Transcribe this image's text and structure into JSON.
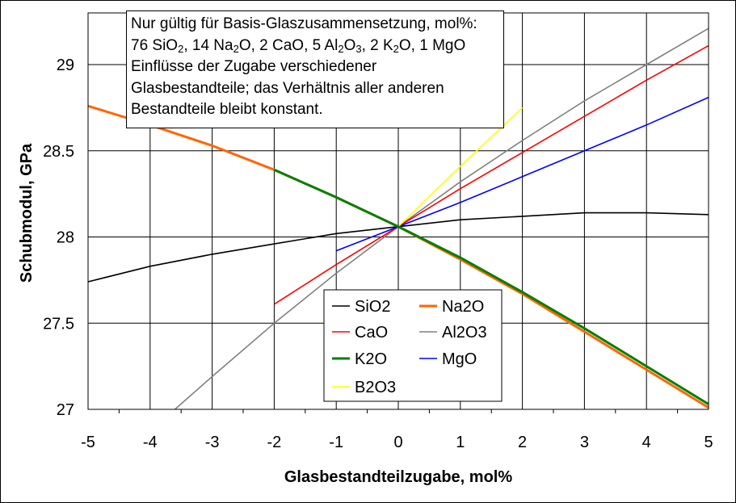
{
  "chart_data": {
    "type": "line",
    "xlabel": "Glasbestandteilzugabe, mol%",
    "ylabel": "Schubmodul, GPa",
    "xlim": [
      -5,
      5
    ],
    "ylim": [
      27,
      29.3
    ],
    "x_ticks": [
      "-5",
      "-4",
      "-3",
      "-2",
      "-1",
      "0",
      "1",
      "2",
      "3",
      "4",
      "5"
    ],
    "y_ticks": [
      "27",
      "27.5",
      "28",
      "28.5",
      "29"
    ],
    "grid": true,
    "legend_position": "bottom-center",
    "annotation_lines": [
      "Nur gültig für Basis-Glaszusammensetzung, mol%:",
      "76 SiO2, 14 Na2O, 2 CaO, 5 Al2O3, 2 K2O, 1 MgO",
      "Einflüsse der Zugabe verschiedener",
      "Glasbestandteile; das Verhältnis aller anderen",
      "Bestandteile bleibt konstant."
    ],
    "note_parts": {
      "a1": "76 SiO",
      "a2": ", 14 Na",
      "a3": "O, 2 CaO, 5 Al",
      "a4": "O",
      "a5": ", 2 K",
      "a6": "O, 1 MgO",
      "sub2": "2",
      "sub3": "3"
    },
    "series": [
      {
        "name": "SiO2",
        "color": "#000000",
        "x": [
          -5,
          -4,
          -3,
          -2,
          -1,
          0,
          1,
          2,
          3,
          4,
          5
        ],
        "y": [
          27.74,
          27.83,
          27.9,
          27.96,
          28.02,
          28.06,
          28.1,
          28.12,
          28.14,
          28.14,
          28.13
        ]
      },
      {
        "name": "Na2O",
        "color": "#ff6600",
        "x": [
          -5,
          -4,
          -3,
          -2,
          -1,
          0,
          1,
          2,
          3,
          4,
          5
        ],
        "y": [
          28.76,
          28.65,
          28.53,
          28.39,
          28.23,
          28.06,
          27.87,
          27.67,
          27.45,
          27.23,
          27.01
        ]
      },
      {
        "name": "CaO",
        "color": "#ff0000",
        "x": [
          -2,
          -1,
          0,
          1,
          2,
          3,
          4,
          5
        ],
        "y": [
          27.61,
          27.84,
          28.06,
          28.28,
          28.49,
          28.7,
          28.91,
          29.11
        ]
      },
      {
        "name": "Al2O3",
        "color": "#808080",
        "x": [
          -3.6,
          -3,
          -2,
          -1,
          0,
          1,
          2,
          3,
          4,
          5
        ],
        "y": [
          27.0,
          27.19,
          27.5,
          27.79,
          28.06,
          28.32,
          28.56,
          28.79,
          29.0,
          29.21
        ]
      },
      {
        "name": "K2O",
        "color": "#008000",
        "x": [
          -2,
          -1,
          0,
          1,
          2,
          3,
          4,
          5
        ],
        "y": [
          28.39,
          28.23,
          28.06,
          27.88,
          27.68,
          27.47,
          27.25,
          27.03
        ]
      },
      {
        "name": "MgO",
        "color": "#0000ff",
        "x": [
          -1,
          0,
          1,
          2,
          3,
          4,
          5
        ],
        "y": [
          27.92,
          28.06,
          28.2,
          28.35,
          28.5,
          28.65,
          28.81
        ]
      },
      {
        "name": "B2O3",
        "color": "#ffff00",
        "x": [
          0,
          1,
          2
        ],
        "y": [
          28.06,
          28.41,
          28.75
        ]
      }
    ]
  }
}
